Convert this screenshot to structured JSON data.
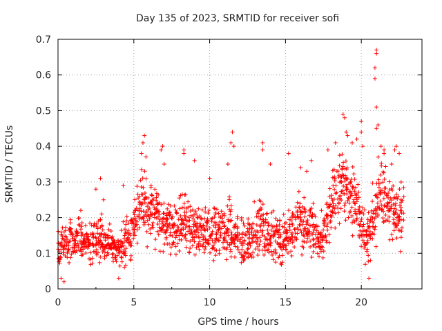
{
  "chart_data": {
    "type": "scatter",
    "title": "Day 135 of 2023, SRMTID for receiver sofi",
    "xlabel": "GPS time / hours",
    "ylabel": "SRMTID / TECUs",
    "xlim": [
      0,
      24
    ],
    "ylim": [
      0,
      0.7
    ],
    "xticks": [
      0,
      5,
      10,
      15,
      20
    ],
    "yticks": [
      0,
      0.1,
      0.2,
      0.3,
      0.4,
      0.5,
      0.6,
      0.7
    ],
    "xtick_labels": [
      "0",
      "5",
      "10",
      "15",
      "20"
    ],
    "ytick_labels": [
      "0",
      "0.1",
      "0.2",
      "0.3",
      "0.4",
      "0.5",
      "0.6",
      "0.7"
    ],
    "grid": true,
    "marker": "+",
    "color": "#ff0000",
    "series": [
      {
        "name": "sofi",
        "x": [
          0.0,
          0.1,
          0.2,
          0.3,
          0.4,
          0.5,
          0.6,
          0.7,
          0.8,
          1.0,
          1.2,
          1.4,
          1.6,
          1.8,
          2.0,
          2.2,
          2.4,
          2.6,
          2.8,
          2.9,
          3.0,
          3.2,
          3.4,
          3.6,
          3.8,
          4.0,
          4.1,
          4.2,
          4.4,
          4.6,
          4.8,
          5.0,
          5.2,
          5.4,
          5.5,
          5.6,
          5.8,
          6.0,
          6.2,
          6.4,
          6.6,
          6.8,
          7.0,
          7.2,
          7.4,
          7.6,
          7.8,
          8.0,
          8.2,
          8.4,
          8.6,
          8.8,
          9.0,
          9.2,
          9.4,
          9.6,
          9.8,
          10.0,
          10.2,
          10.4,
          10.6,
          10.8,
          11.0,
          11.2,
          11.4,
          11.6,
          11.8,
          12.0,
          12.2,
          12.4,
          12.6,
          12.8,
          13.0,
          13.2,
          13.4,
          13.6,
          13.8,
          14.0,
          14.2,
          14.4,
          14.6,
          14.8,
          15.0,
          15.2,
          15.4,
          15.6,
          15.8,
          16.0,
          16.2,
          16.4,
          16.6,
          16.8,
          17.0,
          17.2,
          17.4,
          17.6,
          17.8,
          18.0,
          18.2,
          18.4,
          18.6,
          18.8,
          19.0,
          19.2,
          19.4,
          19.6,
          19.8,
          20.0,
          20.2,
          20.4,
          20.6,
          20.8,
          21.0,
          21.2,
          21.4,
          21.6,
          21.8,
          22.0,
          22.2,
          22.4,
          22.6,
          22.8
        ],
        "y_mid": [
          0.12,
          0.1,
          0.11,
          0.13,
          0.12,
          0.14,
          0.12,
          0.13,
          0.14,
          0.13,
          0.12,
          0.14,
          0.13,
          0.14,
          0.13,
          0.14,
          0.14,
          0.13,
          0.15,
          0.14,
          0.13,
          0.12,
          0.13,
          0.12,
          0.11,
          0.12,
          0.11,
          0.12,
          0.13,
          0.14,
          0.15,
          0.18,
          0.2,
          0.24,
          0.25,
          0.24,
          0.22,
          0.21,
          0.22,
          0.2,
          0.19,
          0.18,
          0.17,
          0.18,
          0.17,
          0.18,
          0.17,
          0.18,
          0.19,
          0.18,
          0.17,
          0.16,
          0.17,
          0.16,
          0.17,
          0.16,
          0.15,
          0.16,
          0.15,
          0.16,
          0.15,
          0.16,
          0.16,
          0.17,
          0.18,
          0.16,
          0.15,
          0.14,
          0.14,
          0.13,
          0.14,
          0.15,
          0.15,
          0.16,
          0.17,
          0.16,
          0.15,
          0.14,
          0.15,
          0.15,
          0.14,
          0.13,
          0.14,
          0.15,
          0.16,
          0.18,
          0.19,
          0.2,
          0.19,
          0.18,
          0.17,
          0.16,
          0.15,
          0.14,
          0.15,
          0.17,
          0.2,
          0.24,
          0.26,
          0.27,
          0.29,
          0.3,
          0.28,
          0.26,
          0.25,
          0.24,
          0.22,
          0.2,
          0.17,
          0.15,
          0.17,
          0.21,
          0.25,
          0.28,
          0.26,
          0.24,
          0.23,
          0.22,
          0.21,
          0.2,
          0.2,
          0.21
        ],
        "y_spread": [
          0.05,
          0.05,
          0.05,
          0.05,
          0.05,
          0.05,
          0.05,
          0.05,
          0.05,
          0.05,
          0.05,
          0.05,
          0.05,
          0.05,
          0.05,
          0.06,
          0.06,
          0.06,
          0.07,
          0.07,
          0.06,
          0.05,
          0.05,
          0.05,
          0.05,
          0.05,
          0.05,
          0.05,
          0.06,
          0.06,
          0.06,
          0.06,
          0.07,
          0.08,
          0.09,
          0.09,
          0.08,
          0.08,
          0.08,
          0.08,
          0.08,
          0.07,
          0.07,
          0.07,
          0.07,
          0.07,
          0.07,
          0.07,
          0.08,
          0.08,
          0.07,
          0.07,
          0.07,
          0.07,
          0.07,
          0.07,
          0.07,
          0.07,
          0.07,
          0.07,
          0.07,
          0.07,
          0.08,
          0.09,
          0.09,
          0.08,
          0.07,
          0.07,
          0.07,
          0.07,
          0.07,
          0.07,
          0.08,
          0.08,
          0.08,
          0.08,
          0.07,
          0.07,
          0.07,
          0.07,
          0.07,
          0.07,
          0.07,
          0.07,
          0.07,
          0.08,
          0.08,
          0.08,
          0.08,
          0.08,
          0.08,
          0.07,
          0.07,
          0.07,
          0.07,
          0.08,
          0.08,
          0.09,
          0.09,
          0.09,
          0.1,
          0.1,
          0.1,
          0.09,
          0.09,
          0.09,
          0.09,
          0.09,
          0.09,
          0.08,
          0.09,
          0.1,
          0.1,
          0.1,
          0.09,
          0.09,
          0.09,
          0.09,
          0.09,
          0.08,
          0.08,
          0.08
        ],
        "outliers": [
          [
            0.2,
            0.03
          ],
          [
            0.4,
            0.02
          ],
          [
            1.5,
            0.22
          ],
          [
            2.5,
            0.28
          ],
          [
            2.8,
            0.31
          ],
          [
            3.0,
            0.25
          ],
          [
            4.0,
            0.03
          ],
          [
            4.3,
            0.29
          ],
          [
            5.5,
            0.38
          ],
          [
            5.6,
            0.41
          ],
          [
            5.7,
            0.43
          ],
          [
            5.8,
            0.37
          ],
          [
            6.8,
            0.39
          ],
          [
            6.9,
            0.4
          ],
          [
            7.0,
            0.35
          ],
          [
            8.3,
            0.39
          ],
          [
            8.3,
            0.38
          ],
          [
            9.0,
            0.36
          ],
          [
            10.0,
            0.31
          ],
          [
            11.2,
            0.35
          ],
          [
            11.4,
            0.41
          ],
          [
            11.5,
            0.44
          ],
          [
            11.6,
            0.4
          ],
          [
            13.5,
            0.39
          ],
          [
            13.5,
            0.41
          ],
          [
            14.0,
            0.35
          ],
          [
            15.2,
            0.38
          ],
          [
            16.0,
            0.34
          ],
          [
            16.4,
            0.33
          ],
          [
            16.7,
            0.36
          ],
          [
            17.8,
            0.39
          ],
          [
            18.3,
            0.41
          ],
          [
            18.8,
            0.49
          ],
          [
            18.9,
            0.48
          ],
          [
            19.0,
            0.44
          ],
          [
            19.1,
            0.43
          ],
          [
            19.4,
            0.41
          ],
          [
            19.7,
            0.42
          ],
          [
            20.0,
            0.47
          ],
          [
            20.0,
            0.44
          ],
          [
            20.1,
            0.4
          ],
          [
            20.5,
            0.03
          ],
          [
            20.6,
            0.08
          ],
          [
            20.9,
            0.62
          ],
          [
            21.0,
            0.67
          ],
          [
            21.0,
            0.66
          ],
          [
            20.9,
            0.59
          ],
          [
            21.0,
            0.51
          ],
          [
            21.0,
            0.45
          ],
          [
            21.1,
            0.46
          ],
          [
            21.3,
            0.4
          ],
          [
            21.5,
            0.39
          ],
          [
            21.5,
            0.38
          ],
          [
            22.0,
            0.35
          ],
          [
            22.2,
            0.39
          ],
          [
            22.3,
            0.4
          ],
          [
            22.5,
            0.38
          ]
        ]
      }
    ]
  }
}
